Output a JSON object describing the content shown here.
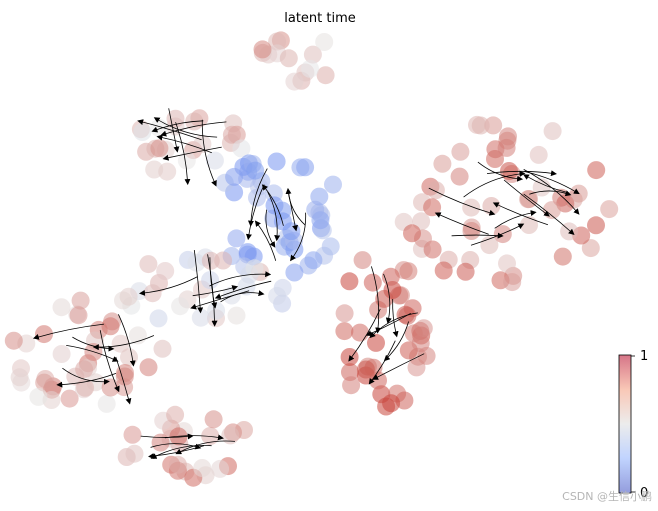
{
  "chart_data": {
    "type": "scatter",
    "title": "latent time",
    "plot_kind": "embedding scatter with velocity streamlines",
    "axes_visible": false,
    "grid": false,
    "colormap": "coolwarm",
    "color_scale": {
      "min": 0,
      "max": 1,
      "ticks": [
        "0",
        "1"
      ]
    },
    "colorbar_placement": "bottom-right",
    "colors": {
      "low": "#6a8ff0",
      "mid": "#e7e7e7",
      "high": "#c53a32",
      "streamline": "#000000"
    },
    "clusters": [
      {
        "name": "top",
        "latent_time": 0.62
      },
      {
        "name": "upper-left",
        "latent_time": 0.6
      },
      {
        "name": "center-blue",
        "latent_time": 0.12
      },
      {
        "name": "right-fan",
        "latent_time": 0.78
      },
      {
        "name": "center-red-channel",
        "latent_time": 0.92
      },
      {
        "name": "mid-left",
        "latent_time": 0.5
      },
      {
        "name": "lower-left",
        "latent_time": 0.68
      },
      {
        "name": "bottom",
        "latent_time": 0.72
      }
    ]
  },
  "watermark": "CSDN @生信小鹏"
}
